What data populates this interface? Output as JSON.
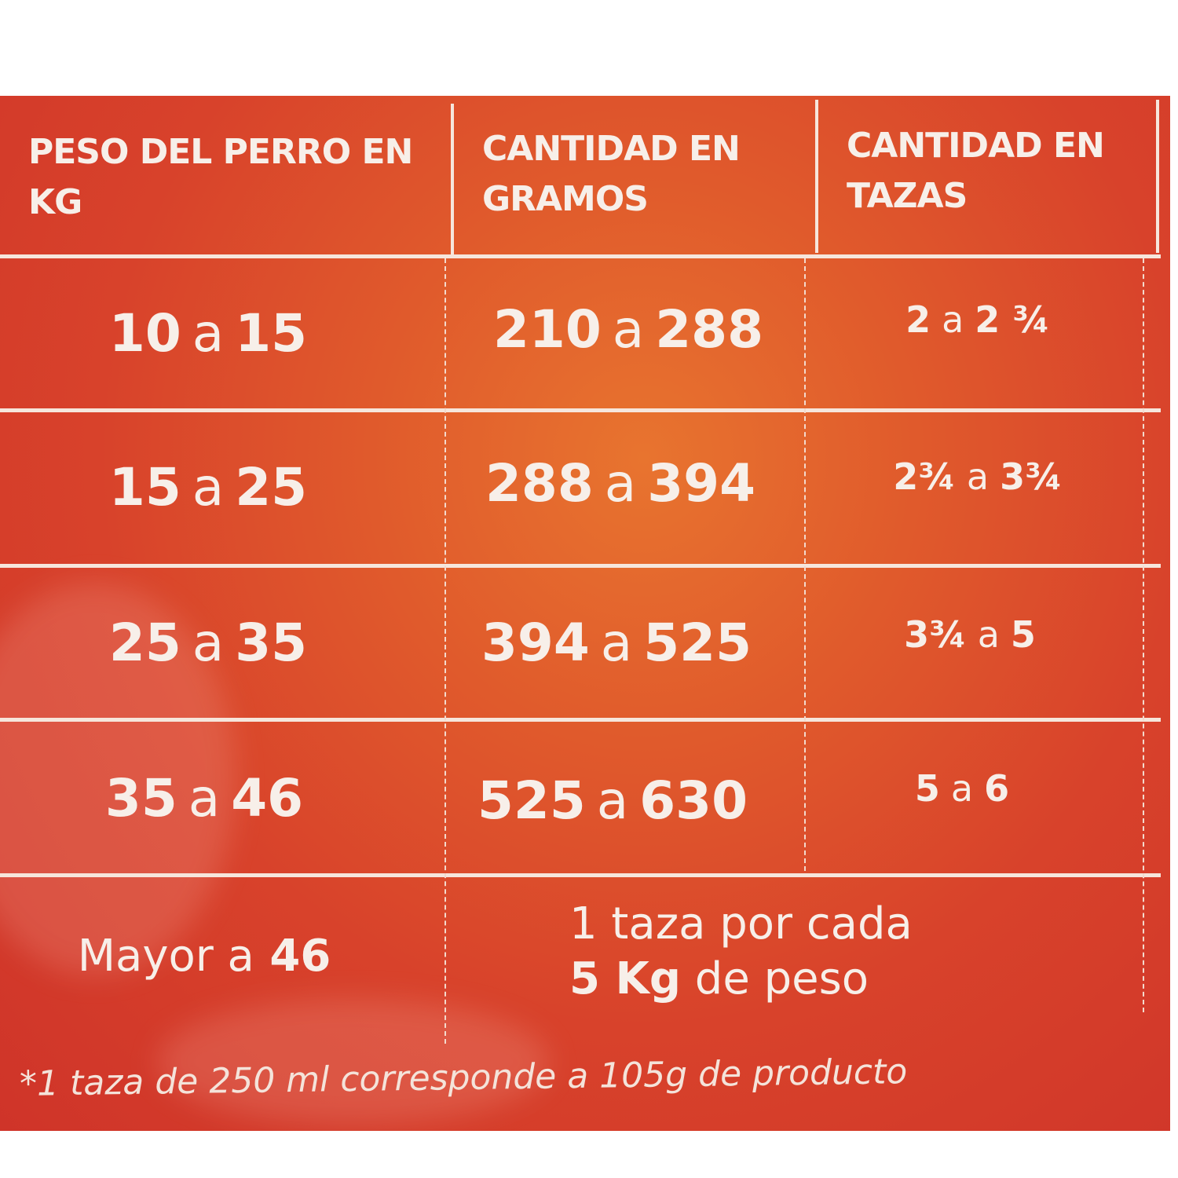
{
  "table": {
    "headers": [
      "PESO DEL PERRO EN KG",
      "CANTIDAD EN GRAMOS",
      "CANTIDAD EN TAZAS"
    ],
    "rows": [
      {
        "peso": [
          "10",
          "a",
          "15"
        ],
        "gramos": [
          "210",
          "a",
          "288"
        ],
        "tazas": [
          "2",
          "a",
          "2 ¾"
        ]
      },
      {
        "peso": [
          "15",
          "a",
          "25"
        ],
        "gramos": [
          "288",
          "a",
          "394"
        ],
        "tazas": [
          "2¾",
          "a",
          "3¾"
        ]
      },
      {
        "peso": [
          "25",
          "a",
          "35"
        ],
        "gramos": [
          "394",
          "a",
          "525"
        ],
        "tazas": [
          "3¾",
          "a",
          "5"
        ]
      },
      {
        "peso": [
          "35",
          "a",
          "46"
        ],
        "gramos": [
          "525",
          "a",
          "630"
        ],
        "tazas": [
          "5",
          "a",
          "6"
        ]
      }
    ],
    "last_row": {
      "peso_prefix": "Mayor a",
      "peso_value": "46",
      "line1": "1 taza por cada",
      "line2_bold": "5 Kg",
      "line2_rest": "de peso"
    }
  },
  "footnote": "*1 taza de 250 ml corresponde a 105g de producto",
  "colors": {
    "background": "#d8422b",
    "center": "#e8742f",
    "lines": "#f6e6dc"
  }
}
